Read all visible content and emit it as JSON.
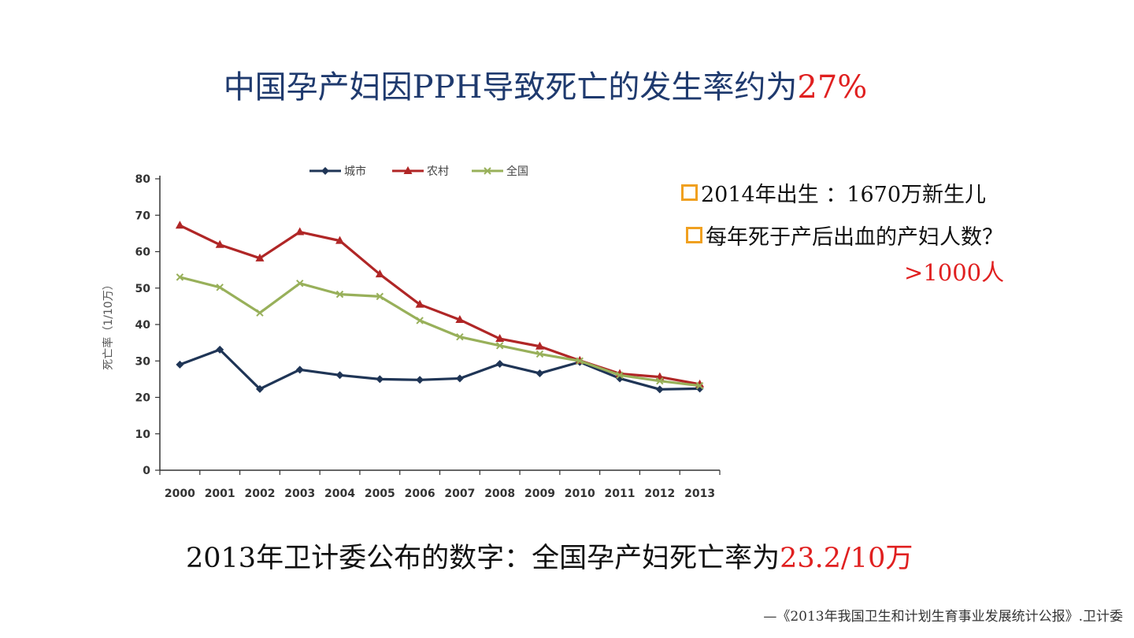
{
  "title": {
    "main": "中国孕产妇因PPH导致死亡的发生率约为",
    "highlight": "27%"
  },
  "bullets": [
    {
      "text": "2014年出生 ：1670万新生儿"
    },
    {
      "text": "每年死于产后出血的产妇人数？"
    }
  ],
  "answer": ">1000人",
  "bottom": {
    "main": "2013年卫计委公布的数字：全国孕产妇死亡率为",
    "highlight": "23.2/10万"
  },
  "source": "—《2013年我国卫生和计划生育事业发展统计公报》.卫计委",
  "colors": {
    "urban": "#1f3556",
    "rural": "#b02626",
    "national": "#98b05a"
  },
  "chart_data": {
    "type": "line",
    "ylabel": "死亡率（1/10万）",
    "ylim": [
      0,
      80
    ],
    "yticks": [
      0,
      10,
      20,
      30,
      40,
      50,
      60,
      70,
      80
    ],
    "x": [
      "2000",
      "2001",
      "2002",
      "2003",
      "2004",
      "2005",
      "2006",
      "2007",
      "2008",
      "2009",
      "2010",
      "2011",
      "2012",
      "2013"
    ],
    "legend_position": "top",
    "series": [
      {
        "name": "城市",
        "marker": "diamond",
        "values": [
          29,
          33.1,
          22.3,
          27.6,
          26.1,
          25,
          24.8,
          25.2,
          29.2,
          26.6,
          29.7,
          25.2,
          22.2,
          22.4
        ]
      },
      {
        "name": "农村",
        "marker": "triangle",
        "values": [
          67.2,
          61.9,
          58.2,
          65.4,
          63,
          53.8,
          45.5,
          41.3,
          36.1,
          34,
          30.1,
          26.5,
          25.6,
          23.6
        ]
      },
      {
        "name": "全国",
        "marker": "cross",
        "values": [
          53,
          50.2,
          43.2,
          51.3,
          48.3,
          47.7,
          41.1,
          36.6,
          34.2,
          31.9,
          30,
          26.1,
          24.5,
          23.2
        ]
      }
    ]
  }
}
